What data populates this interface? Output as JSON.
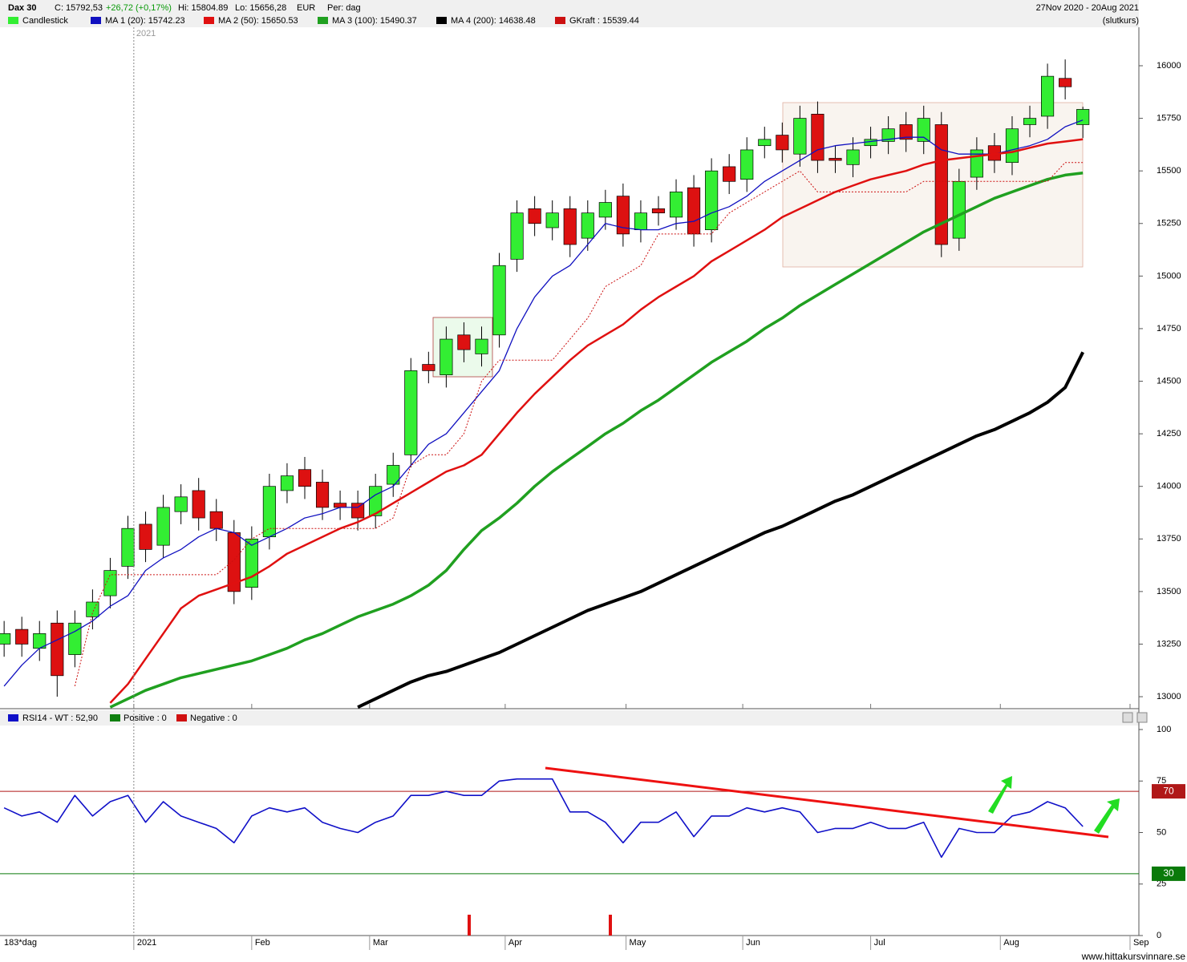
{
  "header": {
    "symbol": "Dax 30",
    "close": "C: 15792,53",
    "change": "+26,72 (+0,17%)",
    "high": "Hi: 15804.89",
    "low": "Lo: 15656,28",
    "currency": "EUR",
    "period": "Per: dag",
    "range": "27Nov 2020 - 20Aug 2021",
    "basis": "(slutkurs)",
    "footer": "www.hittakursvinnare.se"
  },
  "chart_data": [
    {
      "type": "candlestick",
      "candle_name": "Candlestick",
      "up_color": "#33ee33",
      "down_color": "#dd1111",
      "xlim": [
        -0.7,
        192.5
      ],
      "ylim": [
        12943,
        16183
      ],
      "xticks": [
        {
          "value": 22,
          "label": "2021"
        },
        {
          "value": 42,
          "label": "Feb"
        },
        {
          "value": 62,
          "label": "Mar"
        },
        {
          "value": 85,
          "label": "Apr"
        },
        {
          "value": 105.5,
          "label": "May"
        },
        {
          "value": 125.3,
          "label": "Jun"
        },
        {
          "value": 147,
          "label": "Jul"
        },
        {
          "value": 169,
          "label": "Aug"
        },
        {
          "value": 191,
          "label": "Sep"
        }
      ],
      "yticks": [
        13000,
        13250,
        13500,
        13750,
        14000,
        14250,
        14500,
        14750,
        15000,
        15250,
        15500,
        15750,
        16000
      ],
      "x": [
        0,
        3,
        6,
        9,
        12,
        15,
        18,
        21,
        24,
        27,
        30,
        33,
        36,
        39,
        42,
        45,
        48,
        51,
        54,
        57,
        60,
        63,
        66,
        69,
        72,
        75,
        78,
        81,
        84,
        87,
        90,
        93,
        96,
        99,
        102,
        105,
        108,
        111,
        114,
        117,
        120,
        123,
        126,
        129,
        132,
        135,
        138,
        141,
        144,
        147,
        150,
        153,
        156,
        159,
        162,
        165,
        168,
        171,
        174,
        177,
        180,
        183
      ],
      "open": [
        13250,
        13320,
        13230,
        13350,
        13200,
        13380,
        13480,
        13620,
        13820,
        13720,
        13880,
        13980,
        13880,
        13780,
        13520,
        13760,
        13980,
        14080,
        14020,
        13920,
        13920,
        13860,
        14010,
        14150,
        14580,
        14530,
        14720,
        14630,
        14720,
        15080,
        15320,
        15230,
        15320,
        15180,
        15280,
        15380,
        15220,
        15320,
        15280,
        15420,
        15220,
        15520,
        15460,
        15620,
        15670,
        15580,
        15770,
        15560,
        15530,
        15620,
        15640,
        15720,
        15640,
        15720,
        15180,
        15470,
        15620,
        15540,
        15720,
        15760,
        15940,
        15720
      ],
      "high": [
        13360,
        13380,
        13360,
        13410,
        13410,
        13510,
        13660,
        13860,
        13880,
        13960,
        14010,
        14040,
        13940,
        13840,
        13810,
        14060,
        14110,
        14140,
        14080,
        13980,
        13980,
        14060,
        14160,
        14610,
        14640,
        14760,
        14780,
        14760,
        15110,
        15360,
        15380,
        15360,
        15380,
        15360,
        15410,
        15440,
        15360,
        15380,
        15460,
        15480,
        15560,
        15580,
        15660,
        15710,
        15730,
        15810,
        15830,
        15620,
        15660,
        15710,
        15760,
        15780,
        15810,
        15780,
        15510,
        15660,
        15680,
        15760,
        15810,
        16010,
        16030,
        15804.89
      ],
      "low": [
        13190,
        13190,
        13170,
        13000,
        13140,
        13320,
        13420,
        13560,
        13640,
        13660,
        13820,
        13790,
        13740,
        13440,
        13460,
        13700,
        13920,
        13940,
        13840,
        13840,
        13790,
        13800,
        13950,
        14090,
        14490,
        14470,
        14590,
        14570,
        14660,
        15020,
        15190,
        15170,
        15090,
        15120,
        15220,
        15140,
        15160,
        15240,
        15220,
        15140,
        15160,
        15390,
        15400,
        15560,
        15540,
        15520,
        15490,
        15490,
        15470,
        15560,
        15580,
        15590,
        15580,
        15090,
        15120,
        15410,
        15490,
        15480,
        15660,
        15700,
        15840,
        15656.28
      ],
      "close": [
        13300,
        13250,
        13300,
        13100,
        13350,
        13450,
        13600,
        13800,
        13700,
        13900,
        13950,
        13850,
        13800,
        13500,
        13750,
        14000,
        14050,
        14000,
        13900,
        13900,
        13850,
        14000,
        14100,
        14550,
        14550,
        14700,
        14650,
        14700,
        15050,
        15300,
        15250,
        15300,
        15150,
        15300,
        15350,
        15200,
        15300,
        15300,
        15400,
        15200,
        15500,
        15450,
        15600,
        15650,
        15600,
        15750,
        15550,
        15550,
        15600,
        15650,
        15700,
        15650,
        15750,
        15150,
        15450,
        15600,
        15550,
        15700,
        15750,
        15950,
        15900,
        15792.53
      ],
      "series": [
        {
          "name": "MA 1 (20): 15742.23",
          "color": "#1010c0",
          "width": 1.3,
          "values": [
            13050,
            13150,
            13230,
            13270,
            13310,
            13360,
            13430,
            13480,
            13600,
            13660,
            13700,
            13760,
            13800,
            13780,
            13720,
            13760,
            13800,
            13850,
            13870,
            13900,
            13900,
            13960,
            14000,
            14100,
            14200,
            14250,
            14350,
            14450,
            14550,
            14750,
            14900,
            15000,
            15050,
            15150,
            15250,
            15230,
            15220,
            15220,
            15250,
            15260,
            15300,
            15330,
            15380,
            15450,
            15500,
            15550,
            15600,
            15620,
            15630,
            15640,
            15650,
            15660,
            15660,
            15600,
            15580,
            15580,
            15580,
            15600,
            15620,
            15650,
            15710,
            15742
          ]
        },
        {
          "name": "MA 2 (50): 15650.53",
          "color": "#e01010",
          "width": 2.5,
          "values": [
            null,
            null,
            null,
            null,
            null,
            null,
            12970,
            13060,
            13180,
            13300,
            13420,
            13480,
            13510,
            13540,
            13570,
            13620,
            13680,
            13720,
            13760,
            13800,
            13830,
            13870,
            13920,
            13970,
            14020,
            14070,
            14100,
            14150,
            14250,
            14350,
            14440,
            14520,
            14600,
            14670,
            14720,
            14770,
            14840,
            14900,
            14950,
            15000,
            15070,
            15120,
            15170,
            15220,
            15280,
            15320,
            15360,
            15400,
            15430,
            15460,
            15480,
            15500,
            15530,
            15550,
            15560,
            15570,
            15580,
            15590,
            15610,
            15630,
            15640,
            15650
          ]
        },
        {
          "name": "MA 3 (100): 15490.37",
          "color": "#20a020",
          "width": 3.5,
          "values": [
            null,
            null,
            null,
            null,
            null,
            null,
            12950,
            12990,
            13030,
            13060,
            13090,
            13110,
            13130,
            13150,
            13170,
            13200,
            13230,
            13270,
            13300,
            13340,
            13380,
            13410,
            13440,
            13480,
            13530,
            13600,
            13700,
            13790,
            13850,
            13920,
            14000,
            14070,
            14130,
            14190,
            14250,
            14300,
            14360,
            14410,
            14470,
            14530,
            14590,
            14640,
            14690,
            14750,
            14800,
            14860,
            14910,
            14960,
            15010,
            15060,
            15110,
            15160,
            15210,
            15250,
            15290,
            15330,
            15370,
            15400,
            15430,
            15460,
            15480,
            15490
          ]
        },
        {
          "name": "MA 4 (200): 14638.48",
          "color": "#000000",
          "width": 4,
          "values": [
            null,
            null,
            null,
            null,
            null,
            null,
            null,
            null,
            null,
            null,
            null,
            null,
            null,
            null,
            null,
            null,
            null,
            null,
            null,
            null,
            12950,
            12990,
            13030,
            13070,
            13100,
            13120,
            13150,
            13180,
            13210,
            13250,
            13290,
            13330,
            13370,
            13410,
            13440,
            13470,
            13500,
            13540,
            13580,
            13620,
            13660,
            13700,
            13740,
            13780,
            13810,
            13850,
            13890,
            13930,
            13960,
            14000,
            14040,
            14080,
            14120,
            14160,
            14200,
            14240,
            14270,
            14310,
            14350,
            14400,
            14470,
            14638
          ]
        },
        {
          "name": "GKraft : 15539.44",
          "color": "#cc1010",
          "width": 1,
          "dash": true,
          "values": [
            null,
            null,
            null,
            null,
            13050,
            13400,
            13580,
            13580,
            13580,
            13580,
            13580,
            13580,
            13580,
            13650,
            13750,
            13800,
            13800,
            13800,
            13800,
            13800,
            13800,
            13800,
            13850,
            14100,
            14150,
            14150,
            14250,
            14500,
            14600,
            14600,
            14600,
            14600,
            14700,
            14800,
            14950,
            15000,
            15050,
            15200,
            15200,
            15200,
            15200,
            15300,
            15350,
            15400,
            15450,
            15500,
            15400,
            15400,
            15400,
            15400,
            15400,
            15400,
            15450,
            15450,
            15450,
            15450,
            15450,
            15450,
            15450,
            15450,
            15540,
            15540
          ]
        }
      ]
    },
    {
      "type": "line",
      "period_label": "183*dag",
      "xlim": [
        -0.7,
        192.5
      ],
      "ylim": [
        0,
        100
      ],
      "xticks": [
        {
          "value": 22,
          "label": "2021"
        },
        {
          "value": 42,
          "label": "Feb"
        },
        {
          "value": 62,
          "label": "Mar"
        },
        {
          "value": 85,
          "label": "Apr"
        },
        {
          "value": 105.5,
          "label": "May"
        },
        {
          "value": 125.3,
          "label": "Jun"
        },
        {
          "value": 147,
          "label": "Jul"
        },
        {
          "value": 169,
          "label": "Aug"
        },
        {
          "value": 191,
          "label": "Sep"
        }
      ],
      "yticks": [
        0,
        25,
        50,
        75,
        100
      ],
      "levels": [
        70,
        30
      ],
      "level_colors": [
        "#b01818",
        "#0a7a0a"
      ],
      "x": [
        0,
        3,
        6,
        9,
        12,
        15,
        18,
        21,
        24,
        27,
        30,
        33,
        36,
        39,
        42,
        45,
        48,
        51,
        54,
        57,
        60,
        63,
        66,
        69,
        72,
        75,
        78,
        81,
        84,
        87,
        90,
        93,
        96,
        99,
        102,
        105,
        108,
        111,
        114,
        117,
        120,
        123,
        126,
        129,
        132,
        135,
        138,
        141,
        144,
        147,
        150,
        153,
        156,
        159,
        162,
        165,
        168,
        171,
        174,
        177,
        180,
        183
      ],
      "series": [
        {
          "name": "RSI14 - WT : 52,90",
          "color": "#1010c8",
          "values": [
            62,
            58,
            60,
            55,
            68,
            58,
            65,
            68,
            55,
            65,
            58,
            55,
            52,
            45,
            58,
            62,
            60,
            62,
            55,
            52,
            50,
            55,
            58,
            68,
            68,
            70,
            68,
            68,
            75,
            76,
            76,
            76,
            60,
            60,
            55,
            45,
            55,
            55,
            60,
            48,
            58,
            58,
            62,
            60,
            62,
            60,
            50,
            52,
            52,
            55,
            52,
            52,
            55,
            38,
            52,
            50,
            50,
            58,
            60,
            65,
            62,
            52.9
          ]
        }
      ],
      "legend_extra": [
        {
          "name": "Positive : 0",
          "color": "#108010"
        },
        {
          "name": "Negative : 0",
          "color": "#d01010"
        }
      ]
    }
  ]
}
